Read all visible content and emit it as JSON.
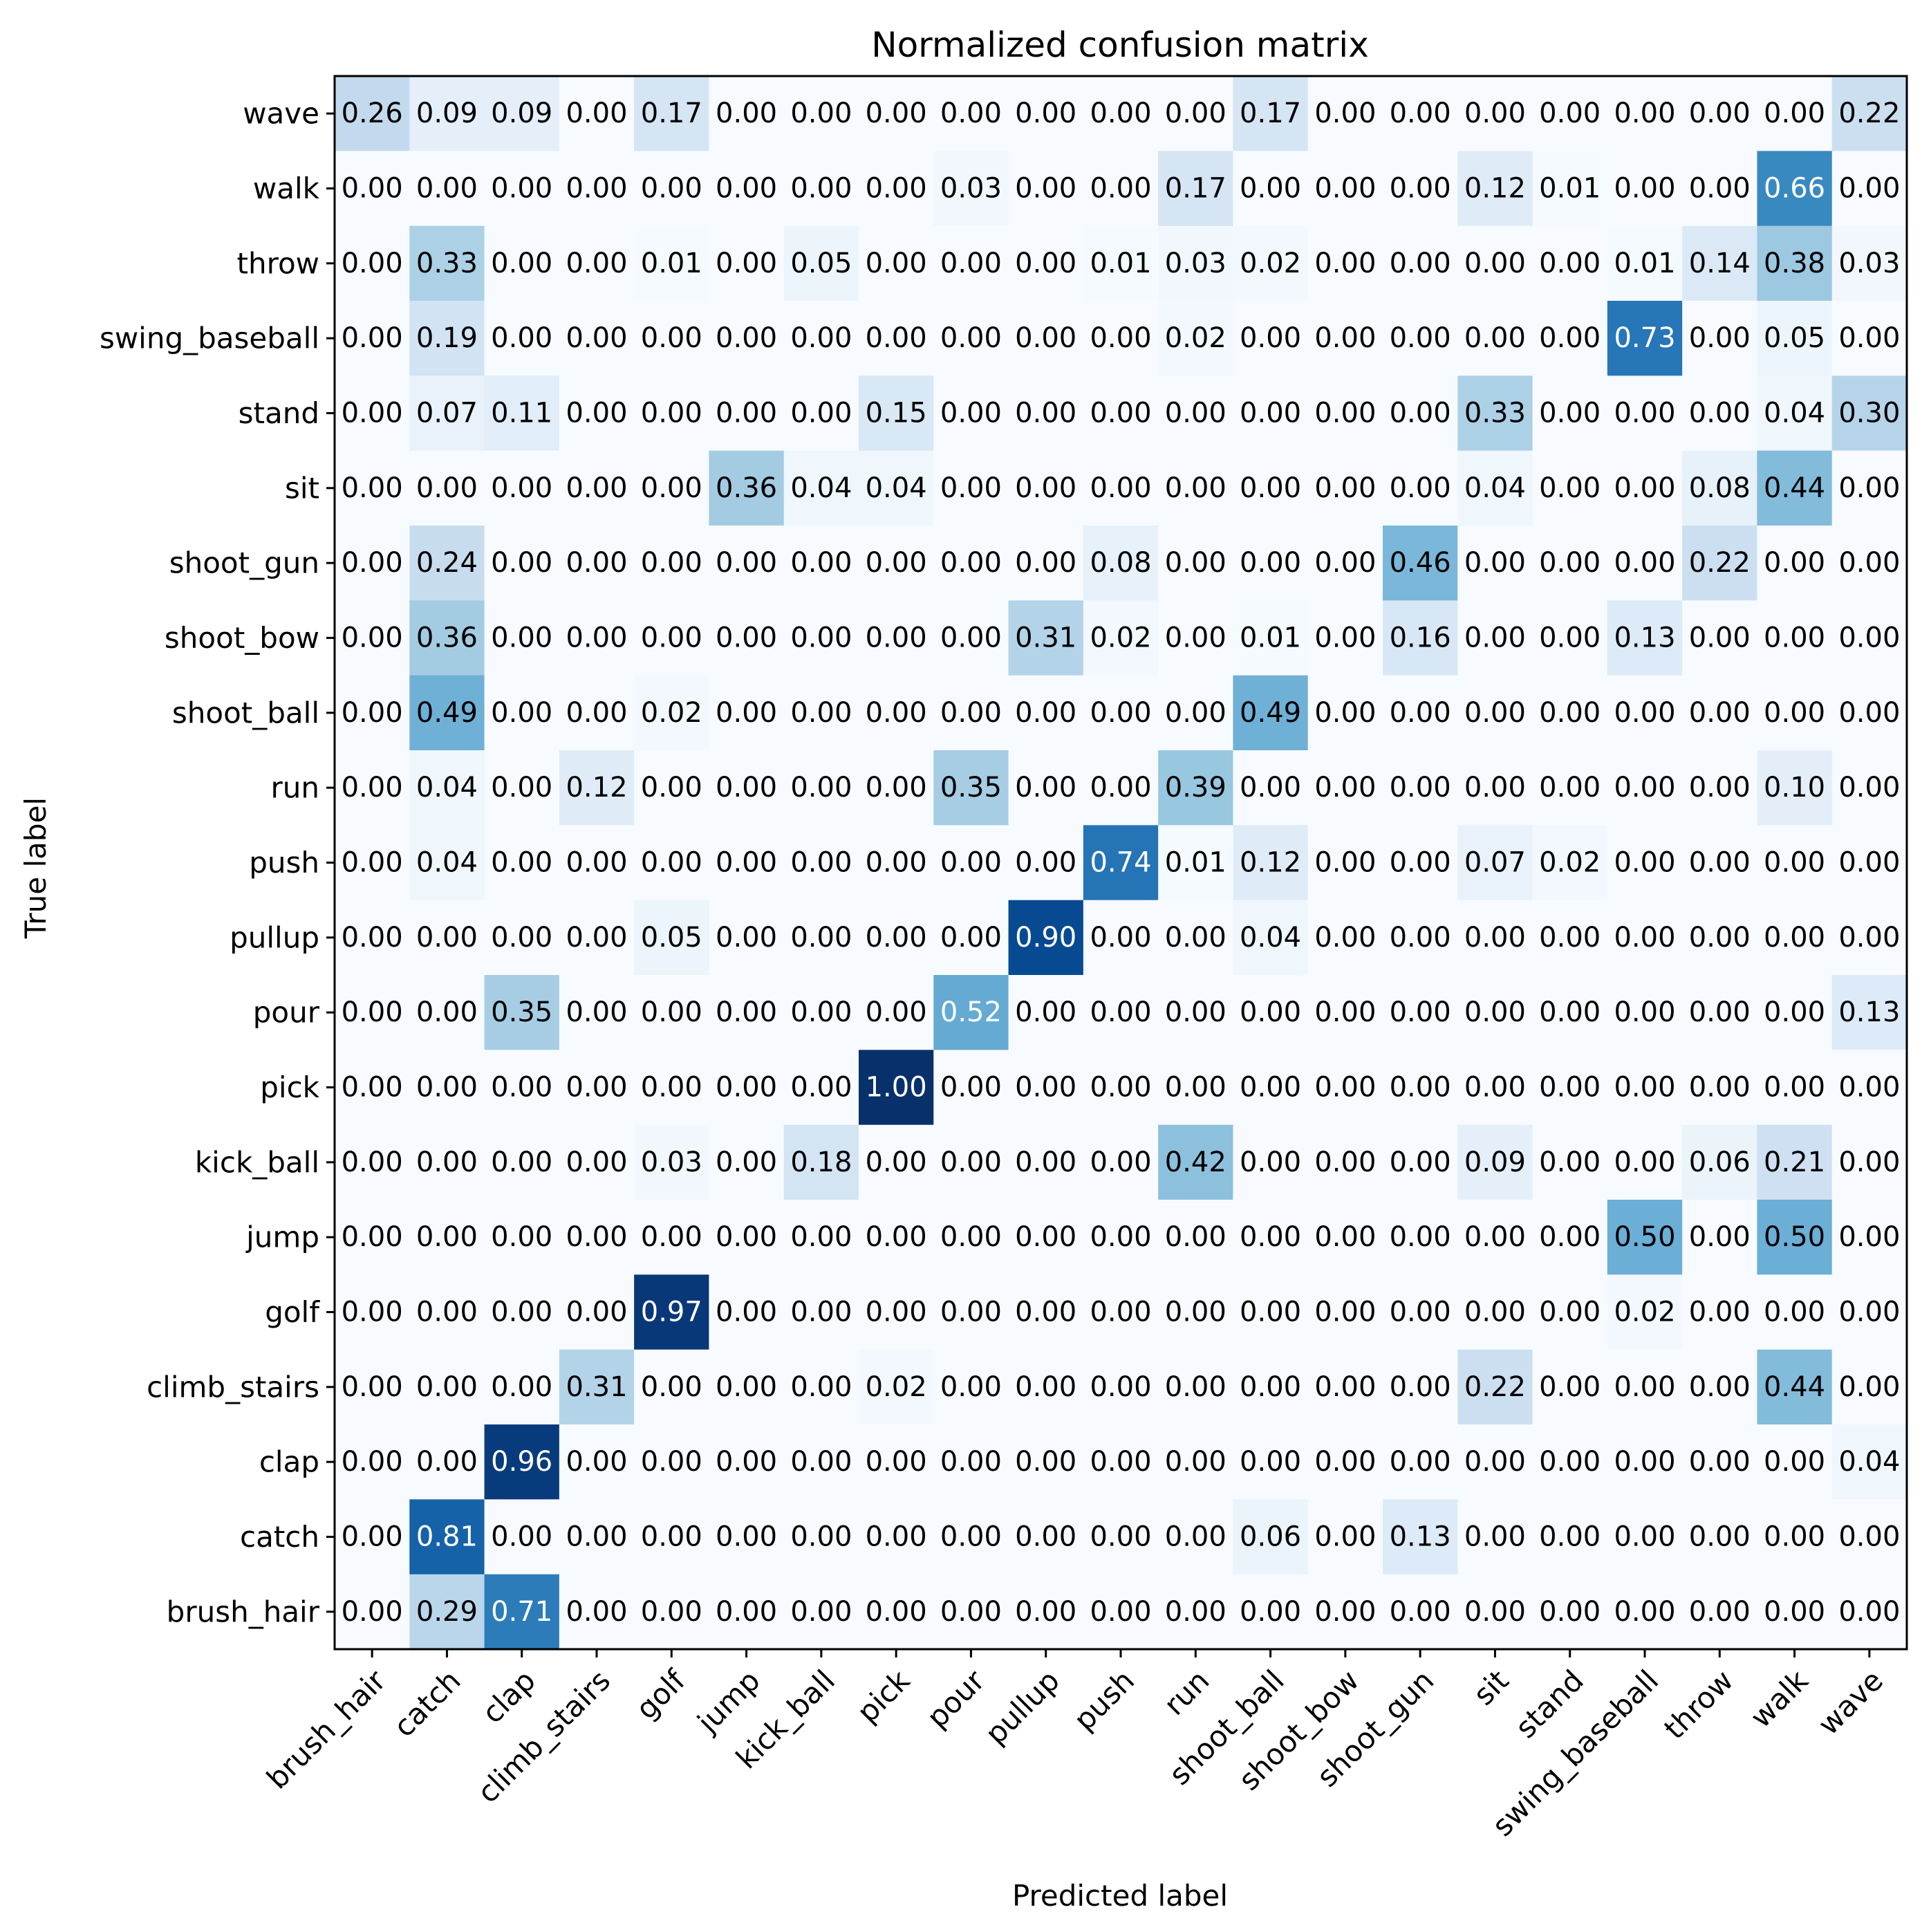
{
  "chart_data": {
    "type": "heatmap",
    "title": "Normalized confusion matrix",
    "xlabel": "Predicted label",
    "ylabel": "True label",
    "colormap": "Blues",
    "value_range": [
      0,
      1
    ],
    "x_categories": [
      "brush_hair",
      "catch",
      "clap",
      "climb_stairs",
      "golf",
      "jump",
      "kick_ball",
      "pick",
      "pour",
      "pullup",
      "push",
      "run",
      "shoot_ball",
      "shoot_bow",
      "shoot_gun",
      "sit",
      "stand",
      "swing_baseball",
      "throw",
      "walk",
      "wave"
    ],
    "y_categories": [
      "wave",
      "walk",
      "throw",
      "swing_baseball",
      "stand",
      "sit",
      "shoot_gun",
      "shoot_bow",
      "shoot_ball",
      "run",
      "push",
      "pullup",
      "pour",
      "pick",
      "kick_ball",
      "jump",
      "golf",
      "climb_stairs",
      "clap",
      "catch",
      "brush_hair"
    ],
    "values": [
      [
        "0.26",
        "0.09",
        "0.09",
        "0.00",
        "0.17",
        "0.00",
        "0.00",
        "0.00",
        "0.00",
        "0.00",
        "0.00",
        "0.00",
        "0.17",
        "0.00",
        "0.00",
        "0.00",
        "0.00",
        "0.00",
        "0.00",
        "0.00",
        "0.22"
      ],
      [
        "0.00",
        "0.00",
        "0.00",
        "0.00",
        "0.00",
        "0.00",
        "0.00",
        "0.00",
        "0.03",
        "0.00",
        "0.00",
        "0.17",
        "0.00",
        "0.00",
        "0.00",
        "0.12",
        "0.01",
        "0.00",
        "0.00",
        "0.66",
        "0.00"
      ],
      [
        "0.00",
        "0.33",
        "0.00",
        "0.00",
        "0.01",
        "0.00",
        "0.05",
        "0.00",
        "0.00",
        "0.00",
        "0.01",
        "0.03",
        "0.02",
        "0.00",
        "0.00",
        "0.00",
        "0.00",
        "0.01",
        "0.14",
        "0.38",
        "0.03"
      ],
      [
        "0.00",
        "0.19",
        "0.00",
        "0.00",
        "0.00",
        "0.00",
        "0.00",
        "0.00",
        "0.00",
        "0.00",
        "0.00",
        "0.02",
        "0.00",
        "0.00",
        "0.00",
        "0.00",
        "0.00",
        "0.73",
        "0.00",
        "0.05",
        "0.00"
      ],
      [
        "0.00",
        "0.07",
        "0.11",
        "0.00",
        "0.00",
        "0.00",
        "0.00",
        "0.15",
        "0.00",
        "0.00",
        "0.00",
        "0.00",
        "0.00",
        "0.00",
        "0.00",
        "0.33",
        "0.00",
        "0.00",
        "0.00",
        "0.04",
        "0.30"
      ],
      [
        "0.00",
        "0.00",
        "0.00",
        "0.00",
        "0.00",
        "0.36",
        "0.04",
        "0.04",
        "0.00",
        "0.00",
        "0.00",
        "0.00",
        "0.00",
        "0.00",
        "0.00",
        "0.04",
        "0.00",
        "0.00",
        "0.08",
        "0.44",
        "0.00"
      ],
      [
        "0.00",
        "0.24",
        "0.00",
        "0.00",
        "0.00",
        "0.00",
        "0.00",
        "0.00",
        "0.00",
        "0.00",
        "0.08",
        "0.00",
        "0.00",
        "0.00",
        "0.46",
        "0.00",
        "0.00",
        "0.00",
        "0.22",
        "0.00",
        "0.00"
      ],
      [
        "0.00",
        "0.36",
        "0.00",
        "0.00",
        "0.00",
        "0.00",
        "0.00",
        "0.00",
        "0.00",
        "0.31",
        "0.02",
        "0.00",
        "0.01",
        "0.00",
        "0.16",
        "0.00",
        "0.00",
        "0.13",
        "0.00",
        "0.00",
        "0.00"
      ],
      [
        "0.00",
        "0.49",
        "0.00",
        "0.00",
        "0.02",
        "0.00",
        "0.00",
        "0.00",
        "0.00",
        "0.00",
        "0.00",
        "0.00",
        "0.49",
        "0.00",
        "0.00",
        "0.00",
        "0.00",
        "0.00",
        "0.00",
        "0.00",
        "0.00"
      ],
      [
        "0.00",
        "0.04",
        "0.00",
        "0.12",
        "0.00",
        "0.00",
        "0.00",
        "0.00",
        "0.35",
        "0.00",
        "0.00",
        "0.39",
        "0.00",
        "0.00",
        "0.00",
        "0.00",
        "0.00",
        "0.00",
        "0.00",
        "0.10",
        "0.00"
      ],
      [
        "0.00",
        "0.04",
        "0.00",
        "0.00",
        "0.00",
        "0.00",
        "0.00",
        "0.00",
        "0.00",
        "0.00",
        "0.74",
        "0.01",
        "0.12",
        "0.00",
        "0.00",
        "0.07",
        "0.02",
        "0.00",
        "0.00",
        "0.00",
        "0.00"
      ],
      [
        "0.00",
        "0.00",
        "0.00",
        "0.00",
        "0.05",
        "0.00",
        "0.00",
        "0.00",
        "0.00",
        "0.90",
        "0.00",
        "0.00",
        "0.04",
        "0.00",
        "0.00",
        "0.00",
        "0.00",
        "0.00",
        "0.00",
        "0.00",
        "0.00"
      ],
      [
        "0.00",
        "0.00",
        "0.35",
        "0.00",
        "0.00",
        "0.00",
        "0.00",
        "0.00",
        "0.52",
        "0.00",
        "0.00",
        "0.00",
        "0.00",
        "0.00",
        "0.00",
        "0.00",
        "0.00",
        "0.00",
        "0.00",
        "0.00",
        "0.13"
      ],
      [
        "0.00",
        "0.00",
        "0.00",
        "0.00",
        "0.00",
        "0.00",
        "0.00",
        "1.00",
        "0.00",
        "0.00",
        "0.00",
        "0.00",
        "0.00",
        "0.00",
        "0.00",
        "0.00",
        "0.00",
        "0.00",
        "0.00",
        "0.00",
        "0.00"
      ],
      [
        "0.00",
        "0.00",
        "0.00",
        "0.00",
        "0.03",
        "0.00",
        "0.18",
        "0.00",
        "0.00",
        "0.00",
        "0.00",
        "0.42",
        "0.00",
        "0.00",
        "0.00",
        "0.09",
        "0.00",
        "0.00",
        "0.06",
        "0.21",
        "0.00"
      ],
      [
        "0.00",
        "0.00",
        "0.00",
        "0.00",
        "0.00",
        "0.00",
        "0.00",
        "0.00",
        "0.00",
        "0.00",
        "0.00",
        "0.00",
        "0.00",
        "0.00",
        "0.00",
        "0.00",
        "0.00",
        "0.50",
        "0.00",
        "0.50",
        "0.00"
      ],
      [
        "0.00",
        "0.00",
        "0.00",
        "0.00",
        "0.97",
        "0.00",
        "0.00",
        "0.00",
        "0.00",
        "0.00",
        "0.00",
        "0.00",
        "0.00",
        "0.00",
        "0.00",
        "0.00",
        "0.00",
        "0.02",
        "0.00",
        "0.00",
        "0.00"
      ],
      [
        "0.00",
        "0.00",
        "0.00",
        "0.31",
        "0.00",
        "0.00",
        "0.00",
        "0.02",
        "0.00",
        "0.00",
        "0.00",
        "0.00",
        "0.00",
        "0.00",
        "0.00",
        "0.22",
        "0.00",
        "0.00",
        "0.00",
        "0.44",
        "0.00"
      ],
      [
        "0.00",
        "0.00",
        "0.96",
        "0.00",
        "0.00",
        "0.00",
        "0.00",
        "0.00",
        "0.00",
        "0.00",
        "0.00",
        "0.00",
        "0.00",
        "0.00",
        "0.00",
        "0.00",
        "0.00",
        "0.00",
        "0.00",
        "0.00",
        "0.04"
      ],
      [
        "0.00",
        "0.81",
        "0.00",
        "0.00",
        "0.00",
        "0.00",
        "0.00",
        "0.00",
        "0.00",
        "0.00",
        "0.00",
        "0.00",
        "0.06",
        "0.00",
        "0.13",
        "0.00",
        "0.00",
        "0.00",
        "0.00",
        "0.00",
        "0.00"
      ],
      [
        "0.00",
        "0.29",
        "0.71",
        "0.00",
        "0.00",
        "0.00",
        "0.00",
        "0.00",
        "0.00",
        "0.00",
        "0.00",
        "0.00",
        "0.00",
        "0.00",
        "0.00",
        "0.00",
        "0.00",
        "0.00",
        "0.00",
        "0.00",
        "0.00"
      ]
    ]
  }
}
